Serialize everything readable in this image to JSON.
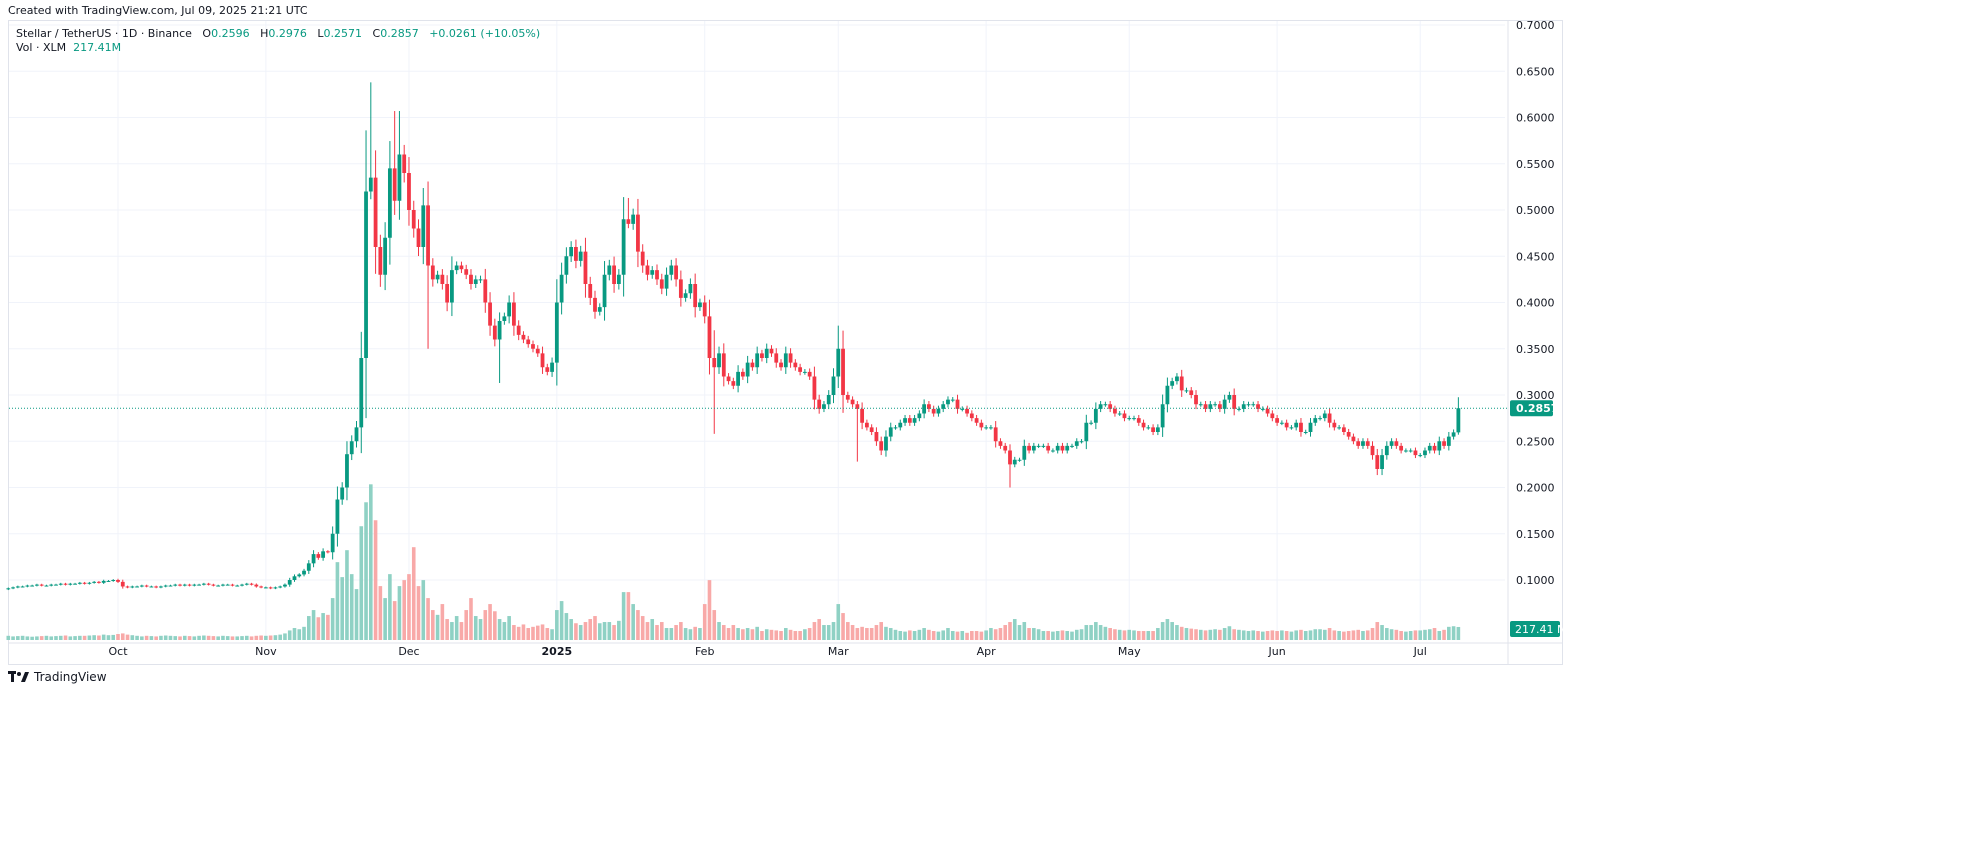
{
  "header": {
    "created": "Created with TradingView.com, Jul 09, 2025 21:21 UTC"
  },
  "legend": {
    "symbol": "Stellar / TetherUS · 1D · Binance",
    "o_label": "O",
    "o": "0.2596",
    "h_label": "H",
    "h": "0.2976",
    "l_label": "L",
    "l": "0.2571",
    "c_label": "C",
    "c": "0.2857",
    "change": "+0.0261 (+10.05%)",
    "vol_label": "Vol · XLM",
    "vol": "217.41M"
  },
  "footer": {
    "logo": "TradingView"
  },
  "colors": {
    "up": "#089981",
    "down": "#F23645",
    "up_vol": "#8fd1c4",
    "down_vol": "#f8a9a8",
    "grid": "#f0f3fa"
  },
  "chart_data": {
    "type": "candlestick",
    "title": "Stellar / TetherUS · 1D · Binance",
    "start_date": "2024-09-08",
    "end_date": "2025-07-09",
    "ylim": [
      0.07,
      0.7
    ],
    "y_ticks": [
      "0.7000",
      "0.6500",
      "0.6000",
      "0.5500",
      "0.5000",
      "0.4500",
      "0.4000",
      "0.3500",
      "0.3000",
      "0.2500",
      "0.2000",
      "0.1500",
      "0.1000"
    ],
    "y_tick_values": [
      0.7,
      0.65,
      0.6,
      0.55,
      0.5,
      0.45,
      0.4,
      0.35,
      0.3,
      0.25,
      0.2,
      0.15,
      0.1
    ],
    "x_ticks": [
      {
        "label": "Oct",
        "day": 23
      },
      {
        "label": "Nov",
        "day": 54
      },
      {
        "label": "Dec",
        "day": 84
      },
      {
        "label": "2025",
        "day": 115
      },
      {
        "label": "Feb",
        "day": 146
      },
      {
        "label": "Mar",
        "day": 174
      },
      {
        "label": "Apr",
        "day": 205
      },
      {
        "label": "May",
        "day": 235
      },
      {
        "label": "Jun",
        "day": 266
      },
      {
        "label": "Jul",
        "day": 296
      }
    ],
    "last_price": "0.2857",
    "last_volume": "217.41 M",
    "open_first": 0.09,
    "close": [
      0.091,
      0.092,
      0.093,
      0.093,
      0.094,
      0.094,
      0.095,
      0.094,
      0.094,
      0.095,
      0.095,
      0.096,
      0.095,
      0.096,
      0.096,
      0.097,
      0.096,
      0.097,
      0.098,
      0.097,
      0.099,
      0.099,
      0.1,
      0.098,
      0.093,
      0.092,
      0.093,
      0.093,
      0.094,
      0.093,
      0.093,
      0.092,
      0.093,
      0.094,
      0.094,
      0.095,
      0.094,
      0.095,
      0.094,
      0.095,
      0.095,
      0.096,
      0.095,
      0.094,
      0.094,
      0.095,
      0.095,
      0.094,
      0.094,
      0.095,
      0.096,
      0.095,
      0.093,
      0.092,
      0.092,
      0.091,
      0.092,
      0.093,
      0.095,
      0.1,
      0.104,
      0.106,
      0.11,
      0.118,
      0.128,
      0.124,
      0.131,
      0.13,
      0.15,
      0.187,
      0.2,
      0.236,
      0.25,
      0.265,
      0.34,
      0.52,
      0.535,
      0.46,
      0.43,
      0.47,
      0.545,
      0.51,
      0.56,
      0.54,
      0.5,
      0.48,
      0.46,
      0.505,
      0.44,
      0.425,
      0.43,
      0.42,
      0.4,
      0.435,
      0.44,
      0.436,
      0.43,
      0.42,
      0.425,
      0.425,
      0.4,
      0.375,
      0.36,
      0.38,
      0.385,
      0.4,
      0.375,
      0.365,
      0.36,
      0.355,
      0.35,
      0.345,
      0.33,
      0.325,
      0.335,
      0.4,
      0.43,
      0.45,
      0.46,
      0.445,
      0.455,
      0.42,
      0.405,
      0.39,
      0.395,
      0.43,
      0.44,
      0.42,
      0.43,
      0.49,
      0.485,
      0.495,
      0.455,
      0.44,
      0.43,
      0.435,
      0.425,
      0.415,
      0.43,
      0.44,
      0.425,
      0.405,
      0.41,
      0.42,
      0.395,
      0.4,
      0.385,
      0.34,
      0.33,
      0.345,
      0.32,
      0.315,
      0.31,
      0.325,
      0.32,
      0.335,
      0.33,
      0.345,
      0.34,
      0.35,
      0.345,
      0.335,
      0.33,
      0.345,
      0.335,
      0.33,
      0.325,
      0.325,
      0.32,
      0.295,
      0.285,
      0.29,
      0.3,
      0.32,
      0.35,
      0.3,
      0.295,
      0.29,
      0.285,
      0.27,
      0.265,
      0.26,
      0.25,
      0.24,
      0.255,
      0.265,
      0.265,
      0.27,
      0.275,
      0.27,
      0.275,
      0.28,
      0.29,
      0.285,
      0.28,
      0.285,
      0.29,
      0.295,
      0.295,
      0.285,
      0.285,
      0.28,
      0.275,
      0.27,
      0.265,
      0.265,
      0.265,
      0.25,
      0.245,
      0.24,
      0.225,
      0.23,
      0.23,
      0.245,
      0.24,
      0.245,
      0.245,
      0.245,
      0.24,
      0.24,
      0.245,
      0.24,
      0.245,
      0.245,
      0.25,
      0.25,
      0.27,
      0.27,
      0.285,
      0.29,
      0.29,
      0.285,
      0.28,
      0.28,
      0.275,
      0.275,
      0.275,
      0.27,
      0.265,
      0.265,
      0.26,
      0.265,
      0.29,
      0.31,
      0.315,
      0.32,
      0.305,
      0.305,
      0.3,
      0.29,
      0.29,
      0.285,
      0.29,
      0.29,
      0.285,
      0.295,
      0.3,
      0.285,
      0.285,
      0.29,
      0.29,
      0.29,
      0.285,
      0.285,
      0.28,
      0.275,
      0.27,
      0.27,
      0.265,
      0.265,
      0.27,
      0.26,
      0.26,
      0.27,
      0.275,
      0.275,
      0.28,
      0.27,
      0.265,
      0.265,
      0.26,
      0.255,
      0.25,
      0.245,
      0.25,
      0.245,
      0.235,
      0.22,
      0.235,
      0.245,
      0.25,
      0.245,
      0.24,
      0.24,
      0.24,
      0.235,
      0.235,
      0.24,
      0.245,
      0.24,
      0.25,
      0.245,
      0.255,
      0.2596,
      0.2857
    ],
    "notable_highs": {
      "76": 0.638,
      "81": 0.607,
      "82": 0.607,
      "130": 0.513,
      "148": 0.37,
      "174": 0.375
    },
    "notable_lows": {
      "148": 0.258,
      "178": 0.228,
      "210": 0.2,
      "103": 0.313,
      "88": 0.35
    },
    "volume_millions": [
      70,
      60,
      65,
      70,
      60,
      55,
      60,
      65,
      70,
      60,
      65,
      70,
      75,
      60,
      65,
      70,
      70,
      75,
      80,
      75,
      90,
      80,
      85,
      100,
      110,
      90,
      80,
      70,
      60,
      70,
      65,
      60,
      70,
      75,
      70,
      65,
      60,
      70,
      65,
      60,
      70,
      75,
      70,
      65,
      60,
      70,
      65,
      60,
      60,
      65,
      70,
      60,
      70,
      75,
      70,
      75,
      80,
      90,
      110,
      160,
      200,
      180,
      220,
      400,
      500,
      380,
      450,
      420,
      700,
      1300,
      1050,
      1500,
      1100,
      850,
      1900,
      2300,
      2600,
      2000,
      900,
      700,
      1100,
      650,
      900,
      1000,
      1100,
      1550,
      900,
      1000,
      700,
      500,
      420,
      600,
      350,
      300,
      400,
      300,
      500,
      700,
      400,
      350,
      500,
      600,
      480,
      350,
      300,
      400,
      250,
      220,
      260,
      200,
      220,
      240,
      260,
      200,
      180,
      500,
      650,
      450,
      350,
      280,
      250,
      300,
      350,
      400,
      280,
      300,
      300,
      250,
      320,
      800,
      800,
      600,
      500,
      400,
      300,
      350,
      250,
      300,
      200,
      200,
      250,
      300,
      200,
      180,
      220,
      200,
      600,
      1000,
      500,
      300,
      250,
      200,
      250,
      200,
      180,
      200,
      180,
      220,
      150,
      180,
      170,
      160,
      150,
      200,
      170,
      150,
      150,
      180,
      200,
      300,
      350,
      250,
      250,
      300,
      600,
      450,
      300,
      250,
      200,
      220,
      200,
      200,
      250,
      300,
      220,
      200,
      170,
      150,
      140,
      160,
      150,
      170,
      200,
      170,
      150,
      140,
      160,
      200,
      150,
      140,
      150,
      120,
      150,
      150,
      140,
      160,
      200,
      180,
      200,
      250,
      300,
      350,
      250,
      300,
      200,
      200,
      180,
      150,
      150,
      140,
      150,
      160,
      150,
      140,
      170,
      180,
      250,
      250,
      300,
      250,
      220,
      200,
      180,
      170,
      160,
      170,
      160,
      150,
      150,
      150,
      150,
      200,
      300,
      350,
      300,
      250,
      220,
      200,
      190,
      180,
      170,
      160,
      170,
      180,
      170,
      200,
      230,
      180,
      170,
      160,
      150,
      160,
      150,
      140,
      150,
      160,
      150,
      160,
      150,
      140,
      160,
      170,
      150,
      160,
      180,
      180,
      170,
      200,
      160,
      150,
      140,
      150,
      160,
      170,
      150,
      160,
      200,
      300,
      250,
      200,
      180,
      170,
      150,
      140,
      150,
      160,
      160,
      170,
      180,
      200,
      150,
      170,
      220,
      230,
      217.41
    ]
  }
}
